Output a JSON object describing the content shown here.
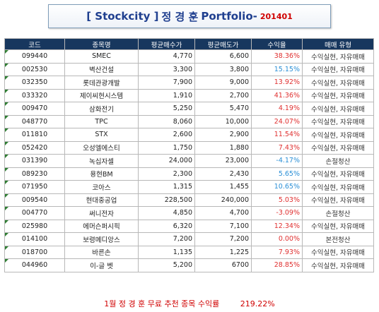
{
  "title": {
    "prefix": "[ Stockcity ]",
    "name": "정 경 훈",
    "portfolio": "Portfolio-",
    "date": "201401"
  },
  "columns": [
    "코드",
    "종목명",
    "평균매수가",
    "평균매도가",
    "수익율",
    "매매 유형"
  ],
  "rows": [
    {
      "code": "099440",
      "name": "SMEC",
      "buy": "4,770",
      "sell": "6,600",
      "rate": "38.36%",
      "rate_class": "pos",
      "type": "수익실현, 자유매매"
    },
    {
      "code": "002530",
      "name": "벽산건설",
      "buy": "3,300",
      "sell": "3,800",
      "rate": "15.15%",
      "rate_class": "neg",
      "type": "수익실현, 자유매매"
    },
    {
      "code": "032350",
      "name": "롯데관광개발",
      "buy": "7,900",
      "sell": "9,000",
      "rate": "13.92%",
      "rate_class": "pos",
      "type": "수익실현, 자유매매"
    },
    {
      "code": "033320",
      "name": "제이씨현시스템",
      "buy": "1,910",
      "sell": "2,700",
      "rate": "41.36%",
      "rate_class": "pos",
      "type": "수익실현, 자유매매"
    },
    {
      "code": "009470",
      "name": "삼화전기",
      "buy": "5,250",
      "sell": "5,470",
      "rate": "4.19%",
      "rate_class": "pos",
      "type": "수익실현, 자유매매"
    },
    {
      "code": "048770",
      "name": "TPC",
      "buy": "8,060",
      "sell": "10,000",
      "rate": "24.07%",
      "rate_class": "pos",
      "type": "수익실현, 자유매매"
    },
    {
      "code": "011810",
      "name": "STX",
      "buy": "2,600",
      "sell": "2,900",
      "rate": "11.54%",
      "rate_class": "pos",
      "type": "수익실현, 자유매매"
    },
    {
      "code": "052420",
      "name": "오성엘에스티",
      "buy": "1,750",
      "sell": "1,880",
      "rate": "7.43%",
      "rate_class": "pos",
      "type": "수익실현, 자유매매"
    },
    {
      "code": "031390",
      "name": "녹십자셀",
      "buy": "24,000",
      "sell": "23,000",
      "rate": "-4.17%",
      "rate_class": "neg",
      "type": "손절청산"
    },
    {
      "code": "089230",
      "name": "용현BM",
      "buy": "2,300",
      "sell": "2,430",
      "rate": "5.65%",
      "rate_class": "neg",
      "type": "수익실현, 자유매매"
    },
    {
      "code": "071950",
      "name": "코아스",
      "buy": "1,315",
      "sell": "1,455",
      "rate": "10.65%",
      "rate_class": "neg",
      "type": "수익실현, 자유매매"
    },
    {
      "code": "009540",
      "name": "현대중공업",
      "buy": "228,500",
      "sell": "240,000",
      "rate": "5.03%",
      "rate_class": "pos",
      "type": "수익실현, 자유매매"
    },
    {
      "code": "004770",
      "name": "써니전자",
      "buy": "4,850",
      "sell": "4,700",
      "rate": "-3.09%",
      "rate_class": "pos",
      "type": "손절청산"
    },
    {
      "code": "025980",
      "name": "에머슨퍼시픽",
      "buy": "6,320",
      "sell": "7,100",
      "rate": "12.34%",
      "rate_class": "pos",
      "type": "수익실현, 자유매매"
    },
    {
      "code": "014100",
      "name": "보령메디앙스",
      "buy": "7,200",
      "sell": "7,200",
      "rate": "0.00%",
      "rate_class": "pos",
      "type": "본전청산"
    },
    {
      "code": "018700",
      "name": "바른손",
      "buy": "1,135",
      "sell": "1,225",
      "rate": "7.93%",
      "rate_class": "pos",
      "type": "수익실현, 자유매매"
    },
    {
      "code": "044960",
      "name": "이-글 벳",
      "buy": "5,200",
      "sell": "6700",
      "rate": "28.85%",
      "rate_class": "pos",
      "type": "수익실현, 자유매매"
    }
  ],
  "footer": {
    "label": "1월   정 경 훈  무료  추천 종목    수익률",
    "value": "219.22%"
  },
  "colors": {
    "header_bg": "#17375e",
    "positive": "#e03030",
    "negative": "#2a8fd6",
    "title_text": "#1f3f8f",
    "accent_red": "#d00000"
  }
}
